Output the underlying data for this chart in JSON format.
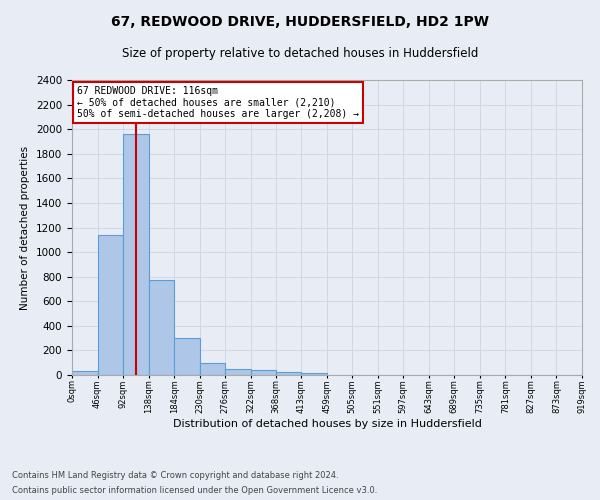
{
  "title": "67, REDWOOD DRIVE, HUDDERSFIELD, HD2 1PW",
  "subtitle": "Size of property relative to detached houses in Huddersfield",
  "xlabel": "Distribution of detached houses by size in Huddersfield",
  "ylabel": "Number of detached properties",
  "bar_edges": [
    0,
    46,
    92,
    138,
    184,
    230,
    276,
    322,
    368,
    413,
    459,
    505,
    551,
    597,
    643,
    689,
    735,
    781,
    827,
    873,
    919
  ],
  "bar_heights": [
    35,
    1140,
    1960,
    770,
    300,
    100,
    45,
    38,
    25,
    15,
    0,
    0,
    0,
    0,
    0,
    0,
    0,
    0,
    0,
    0
  ],
  "bar_color": "#aec6e8",
  "bar_edge_color": "#5a9fd4",
  "bar_linewidth": 0.8,
  "vline_x": 116,
  "vline_color": "#cc0000",
  "vline_linewidth": 1.5,
  "annotation_box_text": "67 REDWOOD DRIVE: 116sqm\n← 50% of detached houses are smaller (2,210)\n50% of semi-detached houses are larger (2,208) →",
  "ylim": [
    0,
    2400
  ],
  "yticks": [
    0,
    200,
    400,
    600,
    800,
    1000,
    1200,
    1400,
    1600,
    1800,
    2000,
    2200,
    2400
  ],
  "tick_labels": [
    "0sqm",
    "46sqm",
    "92sqm",
    "138sqm",
    "184sqm",
    "230sqm",
    "276sqm",
    "322sqm",
    "368sqm",
    "413sqm",
    "459sqm",
    "505sqm",
    "551sqm",
    "597sqm",
    "643sqm",
    "689sqm",
    "735sqm",
    "781sqm",
    "827sqm",
    "873sqm",
    "919sqm"
  ],
  "grid_color": "#d0d8e8",
  "bg_color": "#e8edf5",
  "footnote1": "Contains HM Land Registry data © Crown copyright and database right 2024.",
  "footnote2": "Contains public sector information licensed under the Open Government Licence v3.0."
}
